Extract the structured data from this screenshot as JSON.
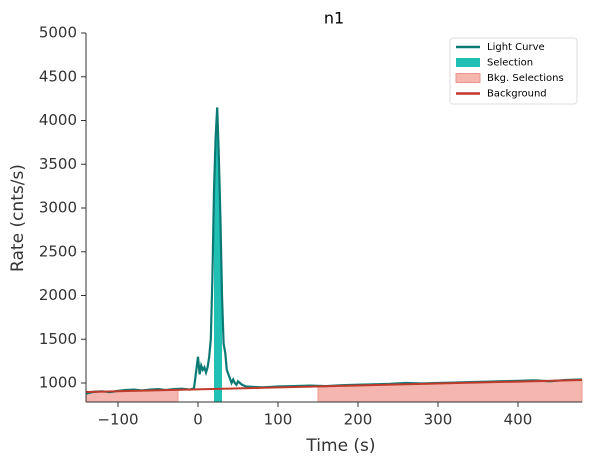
{
  "chart_data": {
    "type": "line",
    "title": "n1",
    "x_label": "Time (s)",
    "y_label": "Rate (cnts/s)",
    "xlim": [
      -140,
      480
    ],
    "ylim": [
      783,
      5000
    ],
    "xticks": [
      {
        "value": -100,
        "label": "−100"
      },
      0,
      100,
      200,
      300,
      400
    ],
    "yticks": [
      1000,
      1500,
      2000,
      2500,
      3000,
      3500,
      4000,
      4500,
      5000
    ],
    "legend_position": "upper right",
    "series": [
      {
        "name": "Light Curve",
        "color": "#0b7a75",
        "x": [
          -140,
          -130,
          -120,
          -110,
          -100,
          -90,
          -80,
          -70,
          -60,
          -50,
          -40,
          -30,
          -20,
          -10,
          -5,
          0,
          2,
          4,
          6,
          8,
          10,
          12,
          14,
          16,
          18,
          20,
          22,
          24,
          26,
          28,
          30,
          32,
          34,
          36,
          38,
          40,
          42,
          44,
          46,
          48,
          50,
          55,
          60,
          70,
          80,
          90,
          100,
          120,
          140,
          160,
          180,
          200,
          220,
          240,
          260,
          280,
          300,
          320,
          340,
          360,
          380,
          400,
          420,
          440,
          460,
          480
        ],
        "values": [
          880,
          900,
          905,
          895,
          910,
          920,
          925,
          915,
          925,
          930,
          920,
          930,
          935,
          925,
          940,
          1300,
          1100,
          1200,
          1150,
          1180,
          1120,
          1180,
          1300,
          1500,
          2200,
          3200,
          3800,
          4150,
          3600,
          2900,
          2000,
          1450,
          1350,
          1150,
          1100,
          1050,
          1000,
          1040,
          1000,
          980,
          1020,
          980,
          960,
          955,
          950,
          955,
          960,
          965,
          970,
          965,
          975,
          980,
          985,
          990,
          1000,
          995,
          1000,
          1005,
          1010,
          1015,
          1020,
          1025,
          1030,
          1020,
          1035,
          1040
        ]
      },
      {
        "name": "Background",
        "color": "#c0392b",
        "x": [
          -140,
          480
        ],
        "values": [
          897,
          1034
        ]
      }
    ],
    "selection": {
      "name": "Selection",
      "color": "#20c0b5",
      "range": [
        20,
        30
      ]
    },
    "bkg_selections": {
      "name": "Bkg. Selections",
      "color": "#f4b6ae",
      "ranges": [
        [
          -140,
          -25
        ],
        [
          150,
          480
        ]
      ]
    }
  }
}
